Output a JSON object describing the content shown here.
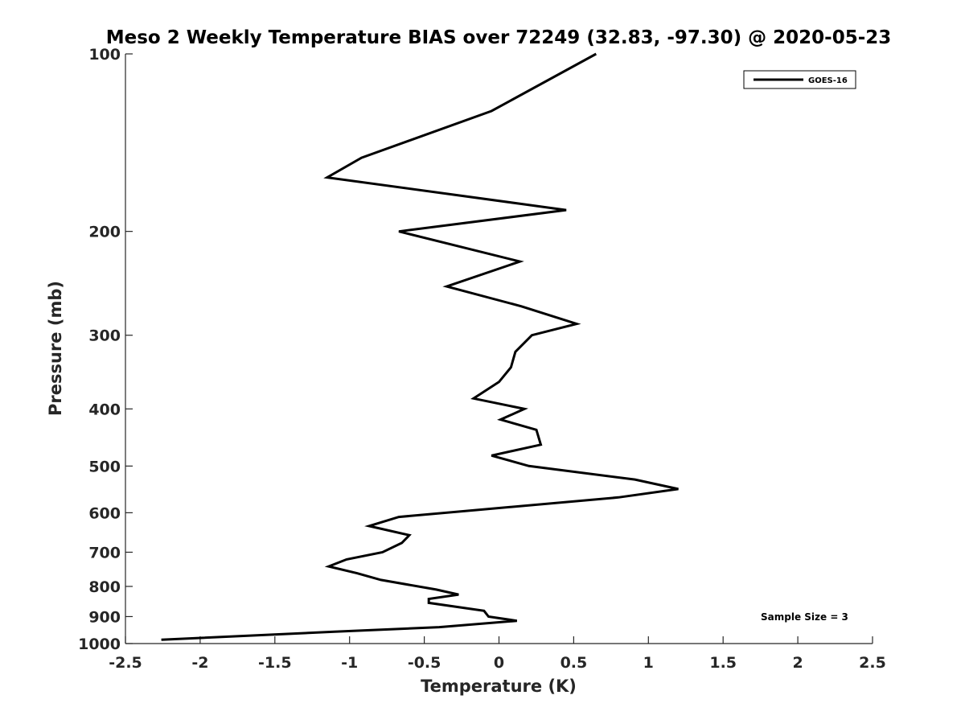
{
  "chart_data": {
    "type": "line",
    "title": "Meso 2 Weekly Temperature BIAS over 72249 (32.83, -97.30) @ 2020-05-23",
    "xlabel": "Temperature (K)",
    "ylabel": "Pressure (mb)",
    "xlim": [
      -2.5,
      2.5
    ],
    "ylim": [
      1000,
      100
    ],
    "y_scale": "log",
    "x_ticks": [
      -2.5,
      -2,
      -1.5,
      -1,
      -0.5,
      0,
      0.5,
      1,
      1.5,
      2,
      2.5
    ],
    "x_tick_labels": [
      "-2.5",
      "-2",
      "-1.5",
      "-1",
      "-0.5",
      "0",
      "0.5",
      "1",
      "1.5",
      "2",
      "2.5"
    ],
    "y_ticks": [
      100,
      200,
      300,
      400,
      500,
      600,
      700,
      800,
      900,
      1000
    ],
    "y_tick_labels": [
      "100",
      "200",
      "300",
      "400",
      "500",
      "600",
      "700",
      "800",
      "900",
      "1000"
    ],
    "grid": false,
    "legend_position": "top-right",
    "annotation": "Sample Size = 3",
    "series": [
      {
        "name": "GOES-16",
        "color": "#000000",
        "points": [
          {
            "x": 0.65,
            "y": 100
          },
          {
            "x": -0.05,
            "y": 125
          },
          {
            "x": -0.92,
            "y": 150
          },
          {
            "x": -1.15,
            "y": 162
          },
          {
            "x": 0.45,
            "y": 184
          },
          {
            "x": -0.67,
            "y": 200
          },
          {
            "x": 0.14,
            "y": 225
          },
          {
            "x": -0.35,
            "y": 248
          },
          {
            "x": 0.15,
            "y": 268
          },
          {
            "x": 0.52,
            "y": 287
          },
          {
            "x": 0.22,
            "y": 300
          },
          {
            "x": 0.11,
            "y": 320
          },
          {
            "x": 0.08,
            "y": 340
          },
          {
            "x": 0.0,
            "y": 360
          },
          {
            "x": -0.17,
            "y": 384
          },
          {
            "x": 0.17,
            "y": 400
          },
          {
            "x": 0.01,
            "y": 417
          },
          {
            "x": 0.25,
            "y": 434
          },
          {
            "x": 0.28,
            "y": 460
          },
          {
            "x": -0.05,
            "y": 480
          },
          {
            "x": 0.2,
            "y": 500
          },
          {
            "x": 0.91,
            "y": 527
          },
          {
            "x": 1.2,
            "y": 547
          },
          {
            "x": 0.8,
            "y": 565
          },
          {
            "x": -0.67,
            "y": 610
          },
          {
            "x": -0.87,
            "y": 632
          },
          {
            "x": -0.6,
            "y": 655
          },
          {
            "x": -0.65,
            "y": 675
          },
          {
            "x": -0.78,
            "y": 700
          },
          {
            "x": -1.02,
            "y": 720
          },
          {
            "x": -1.14,
            "y": 740
          },
          {
            "x": -0.95,
            "y": 760
          },
          {
            "x": -0.79,
            "y": 780
          },
          {
            "x": -0.42,
            "y": 810
          },
          {
            "x": -0.27,
            "y": 826
          },
          {
            "x": -0.47,
            "y": 840
          },
          {
            "x": -0.47,
            "y": 853
          },
          {
            "x": -0.1,
            "y": 880
          },
          {
            "x": -0.07,
            "y": 900
          },
          {
            "x": 0.12,
            "y": 915
          },
          {
            "x": -0.4,
            "y": 938
          },
          {
            "x": -1.1,
            "y": 955
          },
          {
            "x": -2.26,
            "y": 985
          }
        ]
      }
    ]
  }
}
